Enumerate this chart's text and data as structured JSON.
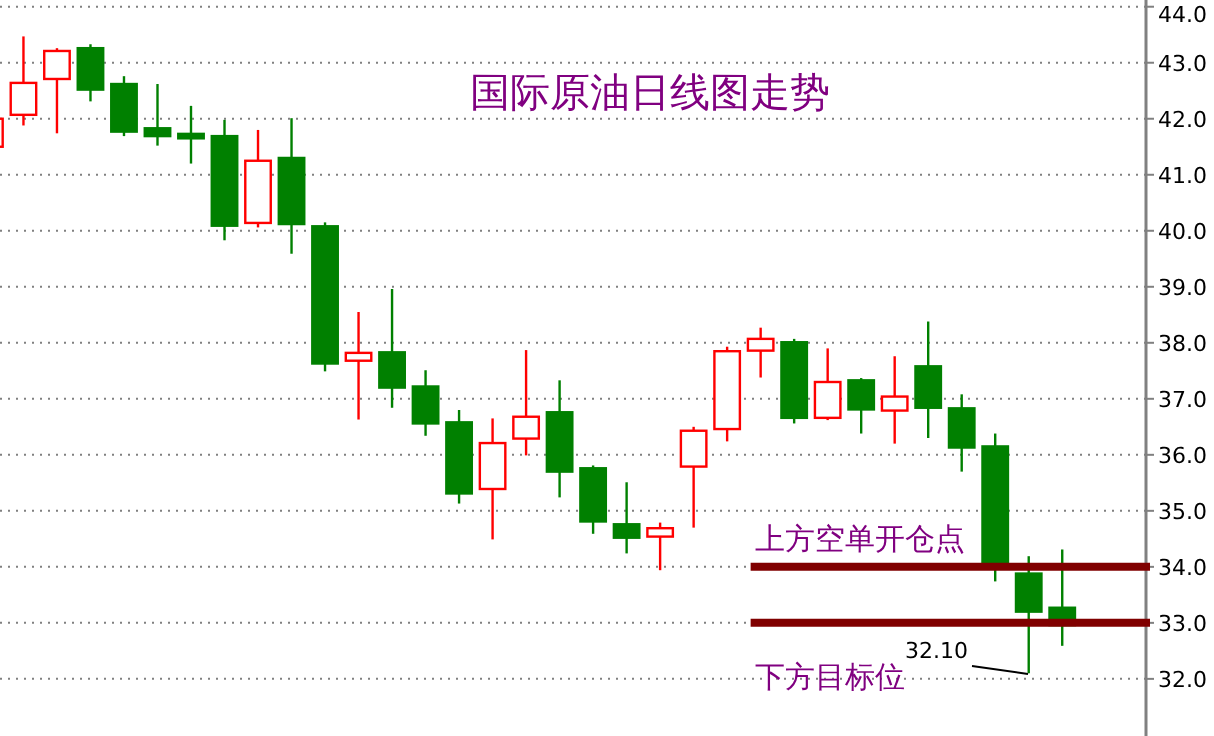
{
  "chart_data": {
    "type": "candlestick",
    "title": "国际原油日线图走势",
    "categories": [
      null,
      null,
      null,
      null,
      null,
      null,
      null,
      null,
      null,
      null,
      null,
      null,
      null,
      null,
      null,
      null,
      null,
      null,
      null,
      null,
      null,
      null,
      null,
      null,
      null,
      null,
      null,
      null,
      null,
      null,
      null,
      null,
      null
    ],
    "ohlc": [
      [
        41.5,
        42.1,
        41.3,
        42.0
      ],
      [
        42.07,
        43.47,
        41.88,
        42.64
      ],
      [
        42.71,
        43.26,
        41.74,
        43.21
      ],
      [
        43.26,
        43.33,
        42.31,
        42.52
      ],
      [
        42.62,
        42.76,
        41.69,
        41.77
      ],
      [
        41.83,
        42.62,
        41.52,
        41.69
      ],
      [
        41.73,
        42.23,
        41.2,
        41.65
      ],
      [
        41.69,
        41.98,
        39.83,
        40.09
      ],
      [
        40.14,
        41.8,
        40.06,
        41.25
      ],
      [
        41.3,
        42.01,
        39.59,
        40.12
      ],
      [
        40.08,
        40.15,
        37.49,
        37.63
      ],
      [
        37.68,
        38.55,
        36.63,
        37.82
      ],
      [
        37.83,
        38.96,
        36.84,
        37.2
      ],
      [
        37.22,
        37.51,
        36.34,
        36.56
      ],
      [
        36.58,
        36.8,
        35.13,
        35.31
      ],
      [
        35.39,
        36.65,
        34.49,
        36.21
      ],
      [
        36.29,
        37.87,
        35.99,
        36.68
      ],
      [
        36.76,
        37.33,
        35.24,
        35.7
      ],
      [
        35.76,
        35.81,
        34.59,
        34.81
      ],
      [
        34.76,
        35.51,
        34.24,
        34.52
      ],
      [
        34.54,
        34.79,
        33.94,
        34.69
      ],
      [
        35.79,
        36.5,
        34.7,
        36.43
      ],
      [
        36.46,
        37.93,
        36.24,
        37.85
      ],
      [
        37.86,
        38.27,
        37.38,
        38.07
      ],
      [
        38.01,
        38.07,
        36.56,
        36.66
      ],
      [
        36.66,
        37.9,
        36.62,
        37.3
      ],
      [
        37.33,
        37.37,
        36.38,
        36.81
      ],
      [
        36.79,
        37.76,
        36.2,
        37.04
      ],
      [
        37.58,
        38.38,
        36.3,
        36.84
      ],
      [
        36.83,
        37.08,
        35.7,
        36.13
      ],
      [
        36.15,
        36.38,
        33.74,
        34.07
      ],
      [
        33.88,
        34.19,
        32.1,
        33.2
      ],
      [
        33.27,
        34.31,
        32.59,
        32.96
      ]
    ],
    "colors": [
      "#ff0000",
      "#ff0000",
      "#ff0000",
      "#008000",
      "#008000",
      "#008000",
      "#008000",
      "#008000",
      "#ff0000",
      "#008000",
      "#008000",
      "#ff0000",
      "#008000",
      "#008000",
      "#008000",
      "#ff0000",
      "#ff0000",
      "#008000",
      "#008000",
      "#008000",
      "#ff0000",
      "#ff0000",
      "#ff0000",
      "#ff0000",
      "#008000",
      "#ff0000",
      "#008000",
      "#ff0000",
      "#008000",
      "#008000",
      "#008000",
      "#008000",
      "#008000"
    ],
    "ylim": [
      30.98,
      44.12
    ],
    "yticks": [
      {
        "value": 32,
        "label": "32.0"
      },
      {
        "value": 33,
        "label": "33.0"
      },
      {
        "value": 34,
        "label": "34.0"
      },
      {
        "value": 35,
        "label": "35.0"
      },
      {
        "value": 36,
        "label": "36.0"
      },
      {
        "value": 37,
        "label": "37.0"
      },
      {
        "value": 38,
        "label": "38.0"
      },
      {
        "value": 39,
        "label": "39.0"
      },
      {
        "value": 40,
        "label": "40.0"
      },
      {
        "value": 41,
        "label": "41.0"
      },
      {
        "value": 42,
        "label": "42.0"
      },
      {
        "value": 43,
        "label": "43.0"
      },
      {
        "value": 44,
        "label": "44.0"
      }
    ],
    "grid": "y",
    "ref_lines": [
      {
        "axis": "y",
        "value": 34,
        "label": "上方空单开仓点",
        "color": "#800000"
      },
      {
        "axis": "y",
        "value": 33,
        "label": "下方目标位",
        "color": "#800000"
      }
    ],
    "annotations": [
      "32.10"
    ]
  }
}
